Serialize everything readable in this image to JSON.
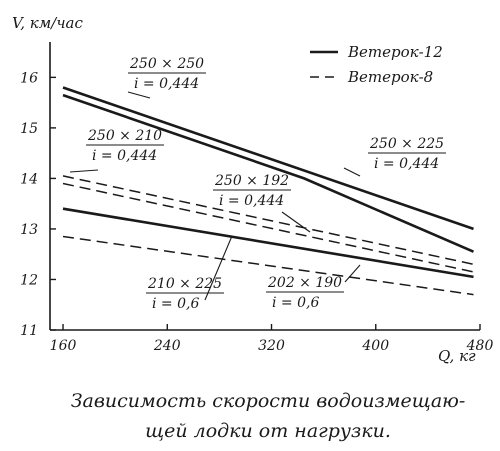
{
  "chart_data": {
    "type": "line",
    "title": "",
    "ylabel": "V, км/час",
    "xlabel": "Q, кг",
    "x_ticks": [
      160,
      240,
      320,
      400,
      480
    ],
    "y_ticks": [
      11,
      12,
      13,
      14,
      15,
      16
    ],
    "xlim": [
      150,
      480
    ],
    "ylim": [
      11,
      16.7
    ],
    "legend": {
      "placement": "top-right",
      "entries": [
        {
          "label": "Ветерок-12",
          "style": "solid"
        },
        {
          "label": "Ветерок-8",
          "style": "dashed"
        }
      ]
    },
    "series": [
      {
        "style": "solid",
        "annotation": [
          "250 × 250",
          "i = 0,444"
        ],
        "x": [
          160,
          475
        ],
        "y": [
          15.8,
          13.0
        ]
      },
      {
        "style": "solid",
        "annotation": [
          "250 × 225",
          "i = 0,444"
        ],
        "x": [
          160,
          345,
          475
        ],
        "y": [
          15.65,
          14.0,
          12.55
        ]
      },
      {
        "style": "solid",
        "annotation": [
          "210 × 225",
          "i = 0,6"
        ],
        "x": [
          160,
          475
        ],
        "y": [
          13.4,
          12.05
        ]
      },
      {
        "style": "dashed",
        "annotation": [
          "250 × 210",
          "i = 0,444"
        ],
        "x": [
          160,
          475
        ],
        "y": [
          14.05,
          12.3
        ]
      },
      {
        "style": "dashed",
        "annotation": [
          "250 × 192",
          "i = 0,444"
        ],
        "x": [
          160,
          475
        ],
        "y": [
          13.9,
          12.15
        ]
      },
      {
        "style": "dashed",
        "annotation": [
          "202 × 190",
          "i = 0,6"
        ],
        "x": [
          160,
          475
        ],
        "y": [
          12.85,
          11.7
        ]
      }
    ]
  },
  "caption": {
    "line1": "Зависимость скорости водоизмещаю-",
    "line2": "щей лодки от нагрузки."
  },
  "colors": {
    "ink": "#1a1a1a",
    "paper": "#ffffff"
  }
}
